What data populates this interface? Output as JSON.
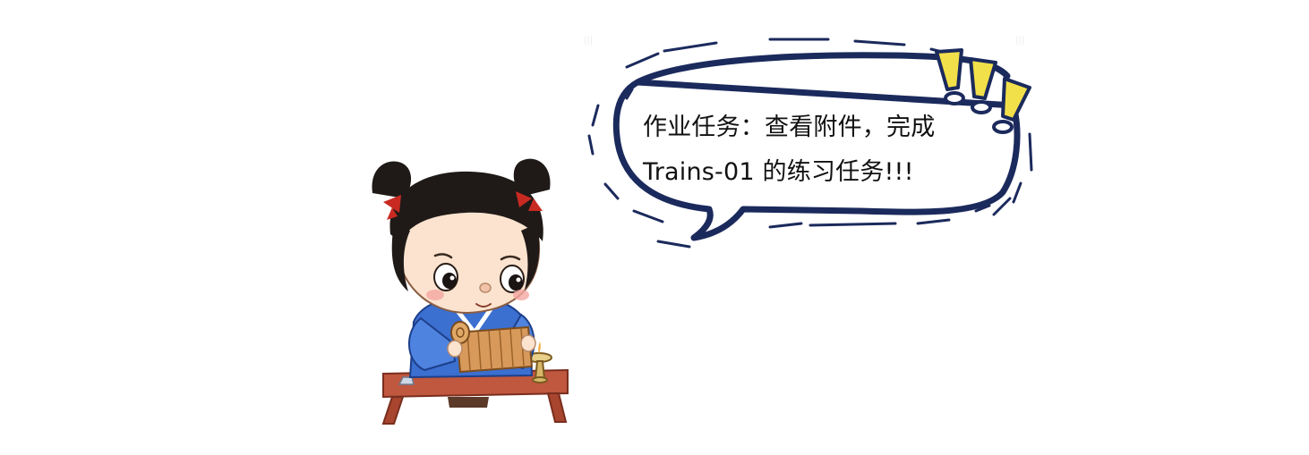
{
  "speech_bubble": {
    "line1": "作业任务：查看附件，完成",
    "line2": "Trains-01 的练习任务!!!"
  },
  "colors": {
    "bubble_stroke": "#1b2a5c",
    "exclaim_fill": "#f2e04a",
    "hair": "#1f1a18",
    "skin": "#fbe3cf",
    "robe": "#3b6fd0",
    "desk": "#c0573f",
    "scroll": "#d89a5b"
  },
  "icons": {
    "exclamation": "exclamation-marks-icon",
    "scholar": "scholar-child-illustration"
  }
}
